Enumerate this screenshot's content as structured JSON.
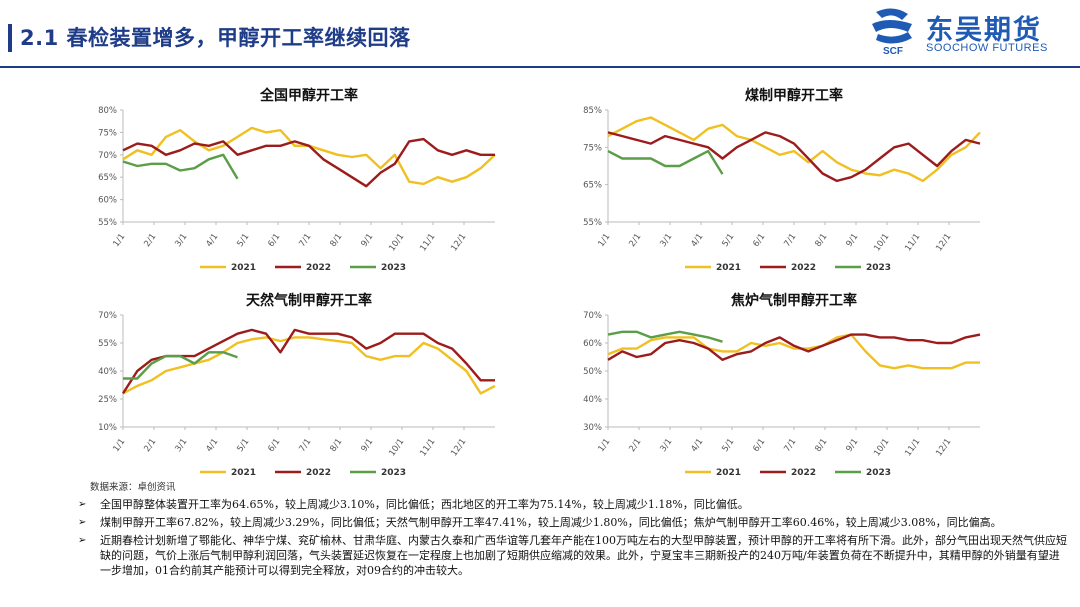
{
  "header": {
    "title": "2.1 春检装置增多，甲醇开工率继续回落",
    "logo_cn": "东吴期货",
    "logo_en": "SOOCHOW FUTURES",
    "logo_mark": "SCF"
  },
  "colors": {
    "y2021": "#f0c020",
    "y2022": "#9c1c1c",
    "y2023": "#5a9e48",
    "brand": "#1f3c88"
  },
  "x_tick_labels": [
    "1/1",
    "2/1",
    "3/1",
    "4/1",
    "5/1",
    "6/1",
    "7/1",
    "8/1",
    "9/1",
    "10/1",
    "11/1",
    "12/1"
  ],
  "chart_data": [
    {
      "type": "line",
      "title": "全国甲醇开工率",
      "ylim": [
        55,
        80
      ],
      "y_ticks": [
        55,
        60,
        65,
        70,
        75,
        80
      ],
      "y_tick_labels": [
        "55%",
        "60%",
        "65%",
        "70%",
        "75%",
        "80%"
      ],
      "x_unit": "week",
      "series": [
        {
          "name": "2021",
          "color": "#f0c020",
          "x": [
            0,
            2,
            4,
            6,
            8,
            10,
            12,
            14,
            16,
            18,
            20,
            22,
            24,
            26,
            28,
            30,
            32,
            34,
            36,
            38,
            40,
            42,
            44,
            46,
            48,
            50,
            52
          ],
          "values": [
            69,
            71,
            70,
            74,
            75.5,
            73,
            71,
            72,
            74,
            76,
            75,
            75.5,
            72,
            72,
            71,
            70,
            69.5,
            70,
            67,
            70,
            64,
            63.5,
            65,
            64,
            65,
            67,
            70
          ]
        },
        {
          "name": "2022",
          "color": "#9c1c1c",
          "x": [
            0,
            2,
            4,
            6,
            8,
            10,
            12,
            14,
            16,
            18,
            20,
            22,
            24,
            26,
            28,
            30,
            32,
            34,
            36,
            38,
            40,
            42,
            44,
            46,
            48,
            50,
            52
          ],
          "values": [
            71,
            72.5,
            72,
            70,
            71,
            72.5,
            72,
            73,
            70,
            71,
            72,
            72,
            73,
            72,
            69,
            67,
            65,
            63,
            66,
            68,
            73,
            73.5,
            71,
            70,
            71,
            70,
            70
          ]
        },
        {
          "name": "2023",
          "color": "#5a9e48",
          "x": [
            0,
            2,
            4,
            6,
            8,
            10,
            12,
            14,
            16
          ],
          "values": [
            68.5,
            67.5,
            68,
            68,
            66.5,
            67,
            69,
            70,
            64.65
          ]
        }
      ]
    },
    {
      "type": "line",
      "title": "煤制甲醇开工率",
      "ylim": [
        55,
        85
      ],
      "y_ticks": [
        55,
        65,
        75,
        85
      ],
      "y_tick_labels": [
        "55%",
        "65%",
        "75%",
        "85%"
      ],
      "x_unit": "week",
      "series": [
        {
          "name": "2021",
          "color": "#f0c020",
          "x": [
            0,
            2,
            4,
            6,
            8,
            10,
            12,
            14,
            16,
            18,
            20,
            22,
            24,
            26,
            28,
            30,
            32,
            34,
            36,
            38,
            40,
            42,
            44,
            46,
            48,
            50,
            52
          ],
          "values": [
            78,
            80,
            82,
            83,
            81,
            79,
            77,
            80,
            81,
            78,
            77,
            75,
            73,
            74,
            71,
            74,
            71,
            69,
            68,
            67.5,
            69,
            68,
            66,
            69,
            73,
            75,
            79
          ]
        },
        {
          "name": "2022",
          "color": "#9c1c1c",
          "x": [
            0,
            2,
            4,
            6,
            8,
            10,
            12,
            14,
            16,
            18,
            20,
            22,
            24,
            26,
            28,
            30,
            32,
            34,
            36,
            38,
            40,
            42,
            44,
            46,
            48,
            50,
            52
          ],
          "values": [
            79,
            78,
            77,
            76,
            78,
            77,
            76,
            75,
            72,
            75,
            77,
            79,
            78,
            76,
            72,
            68,
            66,
            67,
            69,
            72,
            75,
            76,
            73,
            70,
            74,
            77,
            76
          ]
        },
        {
          "name": "2023",
          "color": "#5a9e48",
          "x": [
            0,
            2,
            4,
            6,
            8,
            10,
            12,
            14,
            16
          ],
          "values": [
            74,
            72,
            72,
            72,
            70,
            70,
            72,
            74,
            67.82
          ]
        }
      ]
    },
    {
      "type": "line",
      "title": "天然气制甲醇开工率",
      "ylim": [
        10,
        70
      ],
      "y_ticks": [
        10,
        25,
        40,
        55,
        70
      ],
      "y_tick_labels": [
        "10%",
        "25%",
        "40%",
        "55%",
        "70%"
      ],
      "x_unit": "week",
      "series": [
        {
          "name": "2021",
          "color": "#f0c020",
          "x": [
            0,
            2,
            4,
            6,
            8,
            10,
            12,
            14,
            16,
            18,
            20,
            22,
            24,
            26,
            28,
            30,
            32,
            34,
            36,
            38,
            40,
            42,
            44,
            46,
            48,
            50,
            52
          ],
          "values": [
            28,
            32,
            35,
            40,
            42,
            44,
            46,
            50,
            55,
            57,
            58,
            56,
            58,
            58,
            57,
            56,
            55,
            48,
            46,
            48,
            48,
            55,
            52,
            46,
            40,
            28,
            32
          ]
        },
        {
          "name": "2022",
          "color": "#9c1c1c",
          "x": [
            0,
            2,
            4,
            6,
            8,
            10,
            12,
            14,
            16,
            18,
            20,
            22,
            24,
            26,
            28,
            30,
            32,
            34,
            36,
            38,
            40,
            42,
            44,
            46,
            48,
            50,
            52
          ],
          "values": [
            28,
            40,
            46,
            48,
            48,
            48,
            52,
            56,
            60,
            62,
            60,
            50,
            62,
            60,
            60,
            60,
            58,
            52,
            55,
            60,
            60,
            60,
            55,
            52,
            44,
            35,
            35
          ]
        },
        {
          "name": "2023",
          "color": "#5a9e48",
          "x": [
            0,
            2,
            4,
            6,
            8,
            10,
            12,
            14,
            16
          ],
          "values": [
            36,
            36,
            44,
            48,
            48,
            44,
            50,
            50,
            47.41
          ]
        }
      ]
    },
    {
      "type": "line",
      "title": "焦炉气制甲醇开工率",
      "ylim": [
        30,
        70
      ],
      "y_ticks": [
        30,
        40,
        50,
        60,
        70
      ],
      "y_tick_labels": [
        "30%",
        "40%",
        "50%",
        "60%",
        "70%"
      ],
      "x_unit": "week",
      "series": [
        {
          "name": "2021",
          "color": "#f0c020",
          "x": [
            0,
            2,
            4,
            6,
            8,
            10,
            12,
            14,
            16,
            18,
            20,
            22,
            24,
            26,
            28,
            30,
            32,
            34,
            36,
            38,
            40,
            42,
            44,
            46,
            48,
            50,
            52
          ],
          "values": [
            56,
            58,
            58,
            61,
            62,
            62,
            62,
            58,
            57,
            57,
            60,
            59,
            60,
            58,
            58,
            59,
            62,
            63,
            57,
            52,
            51,
            52,
            51,
            51,
            51,
            53,
            53
          ]
        },
        {
          "name": "2022",
          "color": "#9c1c1c",
          "x": [
            0,
            2,
            4,
            6,
            8,
            10,
            12,
            14,
            16,
            18,
            20,
            22,
            24,
            26,
            28,
            30,
            32,
            34,
            36,
            38,
            40,
            42,
            44,
            46,
            48,
            50,
            52
          ],
          "values": [
            54,
            57,
            55,
            56,
            60,
            61,
            60,
            58,
            54,
            56,
            57,
            60,
            62,
            59,
            57,
            59,
            61,
            63,
            63,
            62,
            62,
            61,
            61,
            60,
            60,
            62,
            63
          ]
        },
        {
          "name": "2023",
          "color": "#5a9e48",
          "x": [
            0,
            2,
            4,
            6,
            8,
            10,
            12,
            14,
            16
          ],
          "values": [
            63,
            64,
            64,
            62,
            63,
            64,
            63,
            62,
            60.46
          ]
        }
      ]
    }
  ],
  "legend": {
    "y2021": "2021",
    "y2022": "2022",
    "y2023": "2023"
  },
  "source": "数据来源：卓创资讯",
  "bullets": [
    "全国甲醇整体装置开工率为64.65%，较上周减少3.10%，同比偏低；西北地区的开工率为75.14%，较上周减少1.18%，同比偏低。",
    "煤制甲醇开工率67.82%，较上周减少3.29%，同比偏低；天然气制甲醇开工率47.41%，较上周减少1.80%，同比偏低；焦炉气制甲醇开工率60.46%，较上周减少3.08%，同比偏高。",
    "近期春检计划新增了鄂能化、神华宁煤、兖矿榆林、甘肃华庭、内蒙古久泰和广西华谊等几套年产能在100万吨左右的大型甲醇装置，预计甲醇的开工率将有所下滑。此外，部分气田出现天然气供应短缺的问题，气价上涨后气制甲醇利润回落，气头装置延迟恢复在一定程度上也加剧了短期供应缩减的效果。此外，宁夏宝丰三期新投产的240万吨/年装置负荷在不断提升中，其精甲醇的外销量有望进一步增加，01合约前其产能预计可以得到完全释放，对09合约的冲击较大。"
  ]
}
